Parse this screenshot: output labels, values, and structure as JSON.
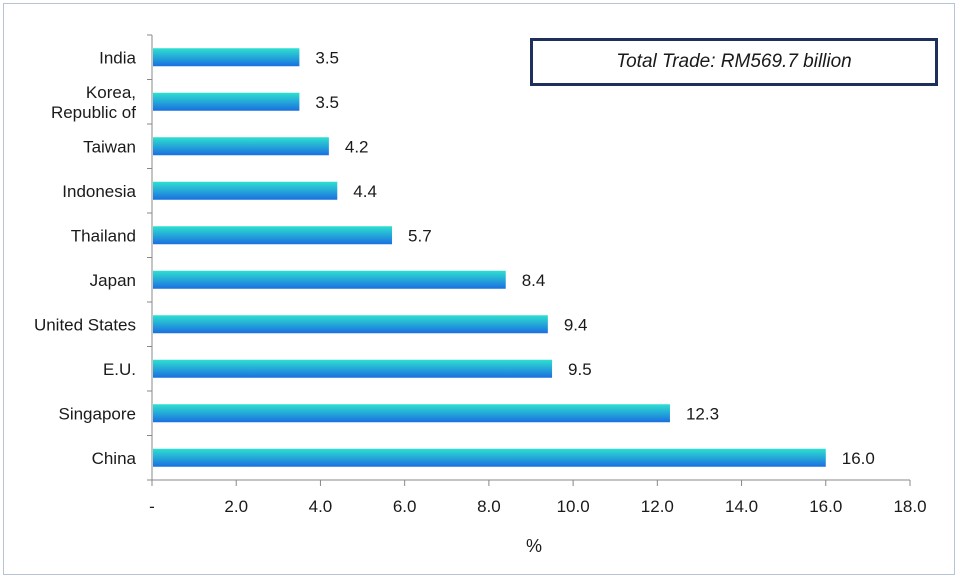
{
  "chart_data": {
    "type": "bar",
    "orientation": "horizontal",
    "categories": [
      "India",
      "Korea, Republic of",
      "Taiwan",
      "Indonesia",
      "Thailand",
      "Japan",
      "United States",
      "E.U.",
      "Singapore",
      "China"
    ],
    "category_lines": [
      [
        "India"
      ],
      [
        "Korea,",
        "Republic of"
      ],
      [
        "Taiwan"
      ],
      [
        "Indonesia"
      ],
      [
        "Thailand"
      ],
      [
        "Japan"
      ],
      [
        "United States"
      ],
      [
        "E.U."
      ],
      [
        "Singapore"
      ],
      [
        "China"
      ]
    ],
    "values": [
      3.5,
      3.5,
      4.2,
      4.4,
      5.7,
      8.4,
      9.4,
      9.5,
      12.3,
      16.0
    ],
    "value_labels": [
      "3.5",
      "3.5",
      "4.2",
      "4.4",
      "5.7",
      "8.4",
      "9.4",
      "9.5",
      "12.3",
      "16.0"
    ],
    "xlim": [
      0,
      18
    ],
    "x_ticks": [
      0,
      2,
      4,
      6,
      8,
      10,
      12,
      14,
      16,
      18
    ],
    "x_tick_labels": [
      "-",
      "2.0",
      "4.0",
      "6.0",
      "8.0",
      "10.0",
      "12.0",
      "14.0",
      "16.0",
      "18.0"
    ],
    "xlabel": "%",
    "annotation": "Total Trade: RM569.7 billion",
    "grid": false,
    "colors": {
      "bar_top": "#2ee0d0",
      "bar_bottom": "#1a6fe0",
      "axis": "#888888",
      "box_border": "#1f2f5c"
    }
  }
}
